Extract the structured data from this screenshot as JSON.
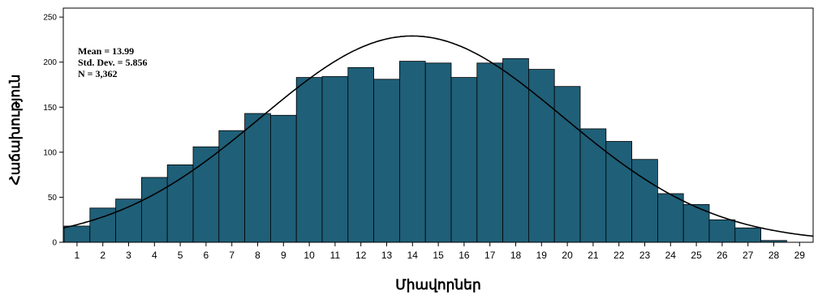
{
  "chart_data": {
    "type": "bar",
    "xlabel": "Միավորներ",
    "ylabel": "Հաճախություն",
    "ylim": [
      0,
      260
    ],
    "yticks": [
      0,
      50,
      100,
      150,
      200,
      250
    ],
    "categories": [
      "1",
      "2",
      "3",
      "4",
      "5",
      "6",
      "7",
      "8",
      "9",
      "10",
      "11",
      "12",
      "13",
      "14",
      "15",
      "16",
      "17",
      "18",
      "19",
      "20",
      "21",
      "22",
      "23",
      "24",
      "25",
      "26",
      "27",
      "28",
      "29"
    ],
    "values": [
      18,
      38,
      48,
      72,
      86,
      106,
      124,
      143,
      141,
      183,
      184,
      194,
      181,
      201,
      199,
      183,
      199,
      204,
      192,
      173,
      126,
      112,
      92,
      54,
      42,
      25,
      16,
      2,
      0
    ],
    "normal_curve": {
      "mean": 13.99,
      "sd": 5.856,
      "n": 3362
    },
    "stats": [
      "Mean = 13.99",
      "Std. Dev. = 5.856",
      "N = 3,362"
    ],
    "bar_color": "#1f5f78",
    "curve_color": "#000000",
    "grid": false
  }
}
